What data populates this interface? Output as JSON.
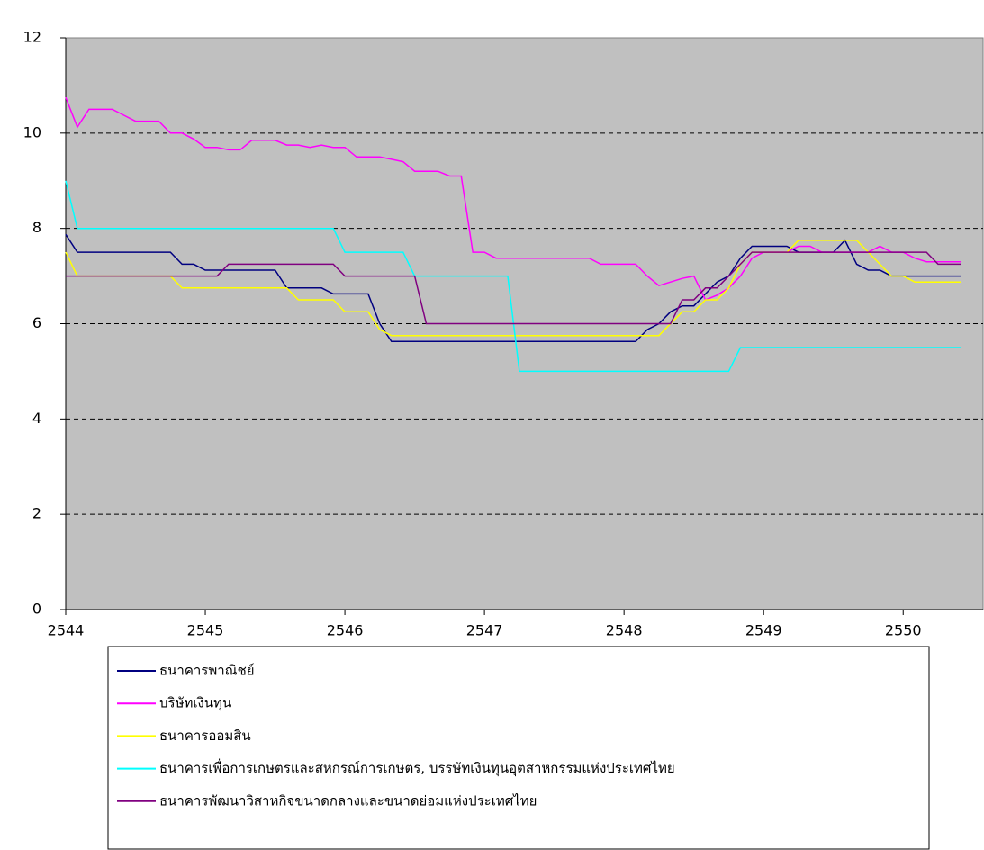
{
  "chart_data": {
    "type": "line",
    "categories": [
      "2544",
      null,
      null,
      null,
      null,
      null,
      null,
      null,
      null,
      null,
      null,
      null,
      "2545",
      null,
      null,
      null,
      null,
      null,
      null,
      null,
      null,
      null,
      null,
      null,
      "2546",
      null,
      null,
      null,
      null,
      null,
      null,
      null,
      null,
      null,
      null,
      null,
      "2547",
      null,
      null,
      null,
      null,
      null,
      null,
      null,
      null,
      null,
      null,
      null,
      "2548",
      null,
      null,
      null,
      null,
      null,
      null,
      null,
      null,
      null,
      null,
      null,
      "2549",
      null,
      null,
      null,
      null,
      null,
      null,
      null,
      null,
      null,
      null,
      null,
      "2550",
      null,
      null,
      null,
      null,
      null
    ],
    "ylim": [
      0,
      12
    ],
    "yticks": [
      0,
      2,
      4,
      6,
      8,
      10,
      12
    ],
    "grid": true,
    "series": [
      {
        "name": "ธนาคารพาณิชย์",
        "color": "#000080",
        "values": [
          7.875,
          7.5,
          7.5,
          7.5,
          7.5,
          7.5,
          7.5,
          7.5,
          7.5,
          7.5,
          7.25,
          7.25,
          7.125,
          7.125,
          7.125,
          7.125,
          7.125,
          7.125,
          7.125,
          6.75,
          6.75,
          6.75,
          6.75,
          6.625,
          6.625,
          6.625,
          6.625,
          6.0,
          5.625,
          5.625,
          5.625,
          5.625,
          5.625,
          5.625,
          5.625,
          5.625,
          5.625,
          5.625,
          5.625,
          5.625,
          5.625,
          5.625,
          5.625,
          5.625,
          5.625,
          5.625,
          5.625,
          5.625,
          5.625,
          5.625,
          5.875,
          6.0,
          6.25,
          6.375,
          6.375,
          6.625,
          6.875,
          7.0,
          7.375,
          7.625,
          7.625,
          7.625,
          7.625,
          7.5,
          7.5,
          7.5,
          7.5,
          7.75,
          7.25,
          7.125,
          7.125,
          7.0,
          7.0,
          7.0,
          7.0,
          7.0,
          7.0,
          7.0
        ]
      },
      {
        "name": "บริษัทเงินทุน",
        "color": "#ff00ff",
        "values": [
          10.75,
          10.125,
          10.5,
          10.5,
          10.5,
          10.375,
          10.25,
          10.25,
          10.25,
          10.0,
          10.0,
          9.875,
          9.7,
          9.7,
          9.65,
          9.65,
          9.85,
          9.85,
          9.85,
          9.75,
          9.75,
          9.7,
          9.75,
          9.7,
          9.7,
          9.5,
          9.5,
          9.5,
          9.45,
          9.4,
          9.2,
          9.2,
          9.2,
          9.1,
          9.1,
          7.5,
          7.5,
          7.375,
          7.375,
          7.375,
          7.375,
          7.375,
          7.375,
          7.375,
          7.375,
          7.375,
          7.25,
          7.25,
          7.25,
          7.25,
          7.0,
          6.8,
          6.875,
          6.95,
          7.0,
          6.5,
          6.6,
          6.75,
          7.0,
          7.375,
          7.5,
          7.5,
          7.5,
          7.625,
          7.625,
          7.5,
          7.5,
          7.5,
          7.5,
          7.5,
          7.625,
          7.5,
          7.5,
          7.375,
          7.3,
          7.3,
          7.3,
          7.3
        ]
      },
      {
        "name": "ธนาคารออมสิน",
        "color": "#ffff00",
        "values": [
          7.5,
          7.0,
          7.0,
          7.0,
          7.0,
          7.0,
          7.0,
          7.0,
          7.0,
          7.0,
          6.75,
          6.75,
          6.75,
          6.75,
          6.75,
          6.75,
          6.75,
          6.75,
          6.75,
          6.75,
          6.5,
          6.5,
          6.5,
          6.5,
          6.25,
          6.25,
          6.25,
          5.875,
          5.75,
          5.75,
          5.75,
          5.75,
          5.75,
          5.75,
          5.75,
          5.75,
          5.75,
          5.75,
          5.75,
          5.75,
          5.75,
          5.75,
          5.75,
          5.75,
          5.75,
          5.75,
          5.75,
          5.75,
          5.75,
          5.75,
          5.75,
          5.75,
          6.0,
          6.25,
          6.25,
          6.5,
          6.5,
          6.75,
          7.25,
          7.5,
          7.5,
          7.5,
          7.5,
          7.75,
          7.75,
          7.75,
          7.75,
          7.75,
          7.75,
          7.5,
          7.25,
          7.0,
          7.0,
          6.875,
          6.875,
          6.875,
          6.875,
          6.875
        ]
      },
      {
        "name": "ธนาคารเพื่อการเกษตรและสหกรณ์การเกษตร, บรรษัทเงินทุนอุตสาหกรรมแห่งประเทศไทย",
        "color": "#00ffff",
        "values": [
          9.0,
          8.0,
          8.0,
          8.0,
          8.0,
          8.0,
          8.0,
          8.0,
          8.0,
          8.0,
          8.0,
          8.0,
          8.0,
          8.0,
          8.0,
          8.0,
          8.0,
          8.0,
          8.0,
          8.0,
          8.0,
          8.0,
          8.0,
          8.0,
          7.5,
          7.5,
          7.5,
          7.5,
          7.5,
          7.5,
          7.0,
          7.0,
          7.0,
          7.0,
          7.0,
          7.0,
          7.0,
          7.0,
          7.0,
          5.0,
          5.0,
          5.0,
          5.0,
          5.0,
          5.0,
          5.0,
          5.0,
          5.0,
          5.0,
          5.0,
          5.0,
          5.0,
          5.0,
          5.0,
          5.0,
          5.0,
          5.0,
          5.0,
          5.5,
          5.5,
          5.5,
          5.5,
          5.5,
          5.5,
          5.5,
          5.5,
          5.5,
          5.5,
          5.5,
          5.5,
          5.5,
          5.5,
          5.5,
          5.5,
          5.5,
          5.5,
          5.5,
          5.5
        ]
      },
      {
        "name": "ธนาคารพัฒนาวิสาหกิจขนาดกลางและขนาดย่อมแห่งประเทศไทย",
        "color": "#800080",
        "values": [
          7.0,
          7.0,
          7.0,
          7.0,
          7.0,
          7.0,
          7.0,
          7.0,
          7.0,
          7.0,
          7.0,
          7.0,
          7.0,
          7.0,
          7.25,
          7.25,
          7.25,
          7.25,
          7.25,
          7.25,
          7.25,
          7.25,
          7.25,
          7.25,
          7.0,
          7.0,
          7.0,
          7.0,
          7.0,
          7.0,
          7.0,
          6.0,
          6.0,
          6.0,
          6.0,
          6.0,
          6.0,
          6.0,
          6.0,
          6.0,
          6.0,
          6.0,
          6.0,
          6.0,
          6.0,
          6.0,
          6.0,
          6.0,
          6.0,
          6.0,
          6.0,
          6.0,
          6.0,
          6.5,
          6.5,
          6.75,
          6.75,
          7.0,
          7.25,
          7.5,
          7.5,
          7.5,
          7.5,
          7.5,
          7.5,
          7.5,
          7.5,
          7.5,
          7.5,
          7.5,
          7.5,
          7.5,
          7.5,
          7.5,
          7.5,
          7.25,
          7.25,
          7.25
        ]
      }
    ]
  }
}
